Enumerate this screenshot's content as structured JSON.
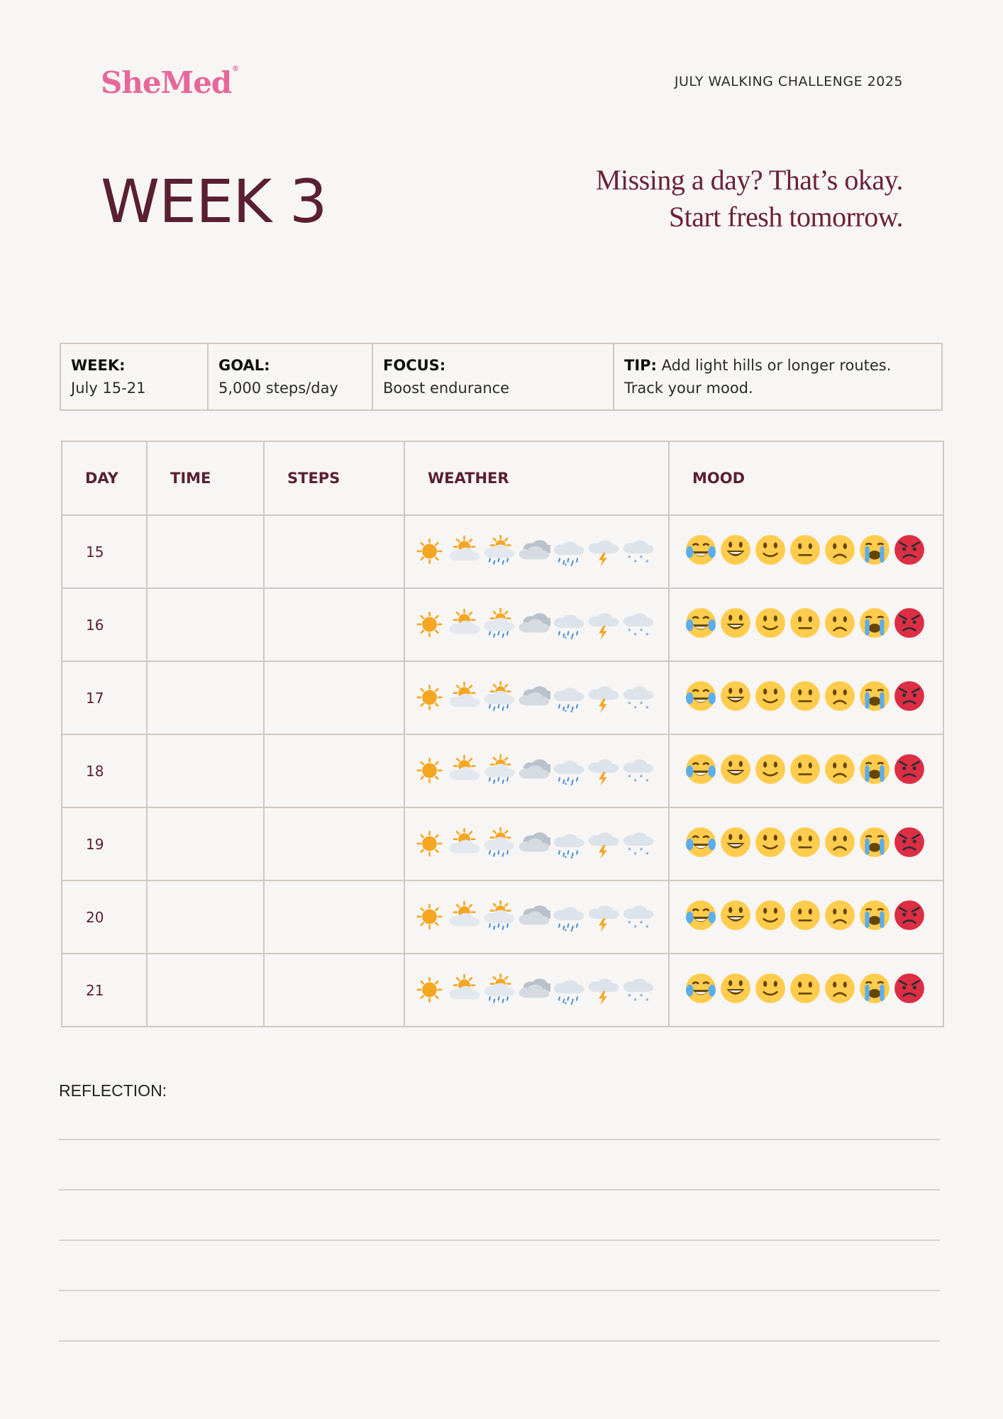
{
  "header": {
    "logo": "SheMed",
    "logo_mark": "®",
    "challenge_title": "JULY WALKING CHALLENGE 2025",
    "week_title": "WEEK 3",
    "quote_line1": "Missing a day? That’s okay.",
    "quote_line2": "Start fresh tomorrow."
  },
  "info": {
    "week_label": "WEEK:",
    "week_value": "July 15-21",
    "goal_label": "GOAL:",
    "goal_value": "5,000 steps/day",
    "focus_label": "FOCUS:",
    "focus_value": "Boost endurance",
    "tip_label": "TIP:",
    "tip_value_line1": "Add light hills or longer routes.",
    "tip_value_line2": "Track your mood."
  },
  "log": {
    "columns": [
      "DAY",
      "TIME",
      "STEPS",
      "WEATHER",
      "MOOD"
    ],
    "days": [
      "15",
      "16",
      "17",
      "18",
      "19",
      "20",
      "21"
    ],
    "weather_icons": [
      "sunny-icon",
      "partly-cloudy-icon",
      "sun-rain-icon",
      "cloudy-icon",
      "rain-icon",
      "thunderstorm-icon",
      "snow-icon"
    ],
    "mood_icons": [
      "laughing-face-icon",
      "grinning-face-icon",
      "smiling-face-icon",
      "neutral-face-icon",
      "frowning-face-icon",
      "crying-face-icon",
      "angry-face-icon"
    ]
  },
  "reflection": {
    "label": "REFLECTION:"
  },
  "colors": {
    "accent": "#5a1f33",
    "logo": "#e8679a",
    "border": "#cfc9c2",
    "background": "#f7f6f4"
  }
}
